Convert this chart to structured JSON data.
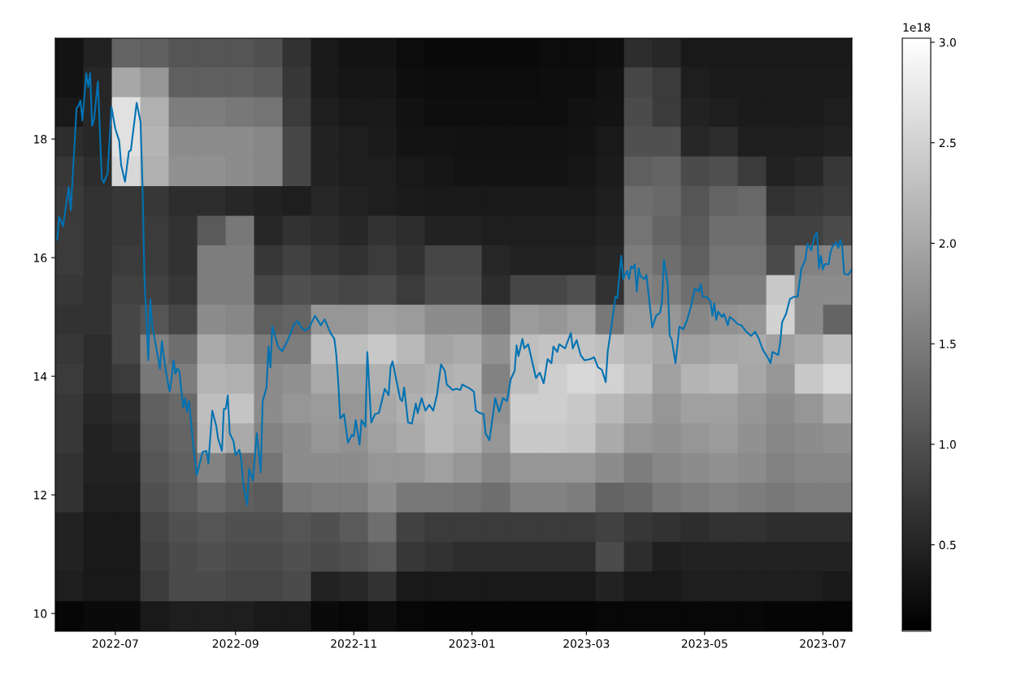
{
  "chart_data": {
    "type": "heatmap",
    "cells": [
      [
        0.3,
        0.47,
        1.23,
        1.17,
        1.05,
        1.05,
        1.05,
        1.0,
        0.65,
        0.36,
        0.3,
        0.3,
        0.21,
        0.19,
        0.19,
        0.19,
        0.19,
        0.21,
        0.21,
        0.24,
        0.59,
        0.53,
        0.36,
        0.36,
        0.36,
        0.36,
        0.36,
        0.36
      ],
      [
        0.3,
        0.53,
        2.0,
        1.8,
        1.17,
        1.17,
        1.17,
        1.11,
        0.71,
        0.36,
        0.33,
        0.33,
        0.24,
        0.21,
        0.21,
        0.21,
        0.21,
        0.24,
        0.24,
        0.28,
        0.88,
        0.76,
        0.42,
        0.39,
        0.39,
        0.39,
        0.39,
        0.39
      ],
      [
        0.36,
        0.53,
        2.67,
        2.1,
        1.52,
        1.52,
        1.46,
        1.41,
        0.76,
        0.42,
        0.36,
        0.36,
        0.28,
        0.24,
        0.24,
        0.24,
        0.24,
        0.24,
        0.28,
        0.3,
        0.94,
        0.76,
        0.47,
        0.42,
        0.39,
        0.39,
        0.39,
        0.42
      ],
      [
        0.59,
        0.53,
        2.67,
        2.15,
        1.69,
        1.69,
        1.69,
        1.63,
        0.88,
        0.47,
        0.42,
        0.39,
        0.3,
        0.3,
        0.28,
        0.28,
        0.28,
        0.28,
        0.3,
        0.36,
        1.0,
        1.0,
        0.53,
        0.59,
        0.42,
        0.42,
        0.42,
        0.47
      ],
      [
        0.71,
        0.59,
        2.56,
        2.1,
        1.75,
        1.75,
        1.69,
        1.63,
        0.88,
        0.47,
        0.42,
        0.42,
        0.36,
        0.33,
        0.3,
        0.3,
        0.3,
        0.3,
        0.33,
        0.39,
        1.17,
        1.23,
        0.94,
        1.0,
        0.76,
        0.47,
        0.53,
        0.71
      ],
      [
        0.76,
        0.65,
        0.71,
        0.71,
        0.59,
        0.59,
        0.53,
        0.47,
        0.42,
        0.53,
        0.47,
        0.42,
        0.39,
        0.36,
        0.36,
        0.36,
        0.36,
        0.36,
        0.36,
        0.42,
        1.34,
        1.28,
        1.05,
        1.23,
        1.28,
        0.65,
        0.71,
        0.76
      ],
      [
        0.76,
        0.65,
        0.71,
        0.76,
        0.65,
        1.11,
        1.46,
        0.53,
        0.65,
        0.59,
        0.53,
        0.65,
        0.59,
        0.47,
        0.47,
        0.42,
        0.42,
        0.42,
        0.42,
        0.47,
        1.41,
        1.23,
        1.11,
        1.34,
        1.34,
        0.82,
        0.82,
        0.94
      ],
      [
        0.76,
        0.65,
        0.76,
        0.76,
        0.65,
        1.52,
        1.52,
        0.71,
        0.82,
        0.71,
        0.65,
        0.76,
        0.65,
        0.88,
        0.88,
        0.53,
        0.47,
        0.47,
        0.47,
        0.53,
        1.52,
        1.34,
        1.17,
        1.41,
        1.41,
        0.94,
        1.57,
        1.63
      ],
      [
        0.71,
        0.65,
        0.82,
        0.82,
        0.71,
        1.52,
        1.52,
        0.88,
        1.0,
        0.94,
        0.88,
        0.94,
        0.76,
        0.94,
        0.94,
        0.59,
        0.88,
        0.88,
        1.0,
        0.65,
        1.57,
        1.52,
        1.34,
        1.52,
        1.52,
        2.38,
        1.69,
        1.69
      ],
      [
        0.65,
        0.65,
        0.88,
        1.06,
        0.88,
        1.69,
        1.63,
        1.17,
        1.23,
        1.8,
        1.8,
        1.92,
        1.86,
        1.69,
        1.69,
        1.46,
        1.86,
        1.8,
        1.92,
        1.46,
        1.86,
        1.8,
        1.63,
        1.75,
        1.8,
        2.5,
        1.69,
        1.23
      ],
      [
        0.71,
        0.59,
        0.88,
        1.57,
        1.34,
        2.03,
        1.92,
        1.52,
        1.52,
        2.27,
        2.27,
        2.38,
        2.21,
        1.97,
        2.03,
        1.75,
        2.27,
        2.33,
        2.33,
        2.27,
        2.15,
        2.0,
        1.92,
        2.0,
        2.03,
        1.92,
        2.03,
        2.27
      ],
      [
        0.76,
        0.59,
        0.76,
        1.46,
        1.52,
        2.15,
        2.1,
        1.69,
        1.75,
        2.03,
        1.97,
        2.1,
        2.03,
        2.1,
        2.15,
        1.57,
        2.27,
        2.45,
        2.56,
        2.5,
        2.27,
        1.92,
        2.15,
        2.21,
        2.0,
        1.8,
        2.38,
        2.56
      ],
      [
        0.71,
        0.53,
        0.59,
        1.17,
        1.28,
        2.27,
        2.33,
        1.69,
        1.8,
        1.86,
        1.8,
        2.0,
        2.1,
        2.21,
        2.15,
        1.75,
        2.45,
        2.45,
        2.38,
        2.21,
        2.0,
        1.8,
        1.92,
        1.92,
        1.8,
        1.69,
        1.8,
        2.03
      ],
      [
        0.71,
        0.47,
        0.53,
        1.11,
        1.23,
        2.21,
        2.03,
        1.57,
        1.69,
        1.8,
        1.75,
        1.92,
        2.03,
        2.21,
        2.1,
        1.8,
        2.38,
        2.38,
        2.33,
        2.03,
        1.8,
        1.75,
        1.8,
        1.86,
        1.75,
        1.63,
        1.69,
        1.75
      ],
      [
        0.65,
        0.47,
        0.47,
        1.05,
        1.17,
        1.57,
        1.34,
        1.41,
        1.69,
        1.69,
        1.69,
        1.8,
        1.8,
        1.92,
        1.8,
        1.63,
        1.8,
        1.8,
        1.8,
        1.69,
        1.52,
        1.63,
        1.69,
        1.75,
        1.69,
        1.57,
        1.63,
        1.63
      ],
      [
        0.65,
        0.42,
        0.42,
        1.0,
        1.11,
        1.28,
        1.17,
        1.11,
        1.46,
        1.52,
        1.52,
        1.69,
        1.46,
        1.46,
        1.41,
        1.34,
        1.57,
        1.57,
        1.52,
        1.23,
        1.28,
        1.46,
        1.52,
        1.57,
        1.52,
        1.46,
        1.52,
        1.52
      ],
      [
        0.47,
        0.36,
        0.36,
        0.88,
        1.0,
        1.05,
        1.0,
        1.0,
        1.05,
        1.0,
        1.11,
        1.34,
        0.82,
        0.76,
        0.76,
        0.76,
        0.76,
        0.76,
        0.76,
        0.82,
        0.71,
        0.65,
        0.59,
        0.65,
        0.65,
        0.59,
        0.59,
        0.59
      ],
      [
        0.47,
        0.36,
        0.36,
        0.82,
        0.94,
        1.0,
        0.94,
        0.94,
        1.0,
        0.94,
        1.0,
        1.11,
        0.71,
        0.65,
        0.59,
        0.59,
        0.59,
        0.59,
        0.59,
        0.94,
        0.59,
        0.42,
        0.47,
        0.47,
        0.47,
        0.47,
        0.47,
        0.47
      ],
      [
        0.42,
        0.36,
        0.36,
        0.76,
        0.94,
        0.94,
        0.88,
        0.88,
        0.94,
        0.47,
        0.53,
        0.65,
        0.36,
        0.36,
        0.36,
        0.36,
        0.36,
        0.36,
        0.36,
        0.47,
        0.36,
        0.36,
        0.42,
        0.42,
        0.42,
        0.42,
        0.42,
        0.36
      ],
      [
        0.15,
        0.19,
        0.19,
        0.36,
        0.42,
        0.42,
        0.42,
        0.36,
        0.36,
        0.19,
        0.16,
        0.24,
        0.16,
        0.13,
        0.13,
        0.13,
        0.13,
        0.13,
        0.13,
        0.16,
        0.16,
        0.16,
        0.16,
        0.16,
        0.16,
        0.13,
        0.13,
        0.13
      ]
    ],
    "clim": [
      0.07,
      3.02
    ],
    "cticks": [
      0.5,
      {
        "value": 1,
        "label": "1.0"
      },
      1.5,
      {
        "value": 2,
        "label": "2.0"
      },
      2.5,
      {
        "value": 3,
        "label": "3.0"
      }
    ],
    "clabel": "1e18",
    "xlim": [
      "2022-05-31",
      "2023-07-16"
    ],
    "xticks": [
      "2022-07",
      "2022-09",
      "2022-11",
      "2023-01",
      "2023-03",
      "2023-05",
      "2023-07"
    ],
    "ylim": [
      9.7,
      19.7
    ],
    "yticks": [
      10,
      12,
      14,
      16,
      18
    ],
    "series": [
      {
        "type": "line",
        "color": "#0072b2",
        "x": [
          "2022-06-01",
          "2022-06-02",
          "2022-06-04",
          "2022-06-07",
          "2022-06-08",
          "2022-06-11",
          "2022-06-12",
          "2022-06-13",
          "2022-06-14",
          "2022-06-16",
          "2022-06-17",
          "2022-06-18",
          "2022-06-19",
          "2022-06-20",
          "2022-06-22",
          "2022-06-24",
          "2022-06-25",
          "2022-06-27",
          "2022-06-29",
          "2022-07-01",
          "2022-07-03",
          "2022-07-04",
          "2022-07-06",
          "2022-07-08",
          "2022-07-09",
          "2022-07-12",
          "2022-07-14",
          "2022-07-15",
          "2022-07-16",
          "2022-07-18",
          "2022-07-19",
          "2022-07-20",
          "2022-07-22",
          "2022-07-24",
          "2022-07-25",
          "2022-07-27",
          "2022-07-29",
          "2022-07-30",
          "2022-07-31",
          "2022-08-01",
          "2022-08-02",
          "2022-08-03",
          "2022-08-05",
          "2022-08-06",
          "2022-08-07",
          "2022-08-08",
          "2022-08-10",
          "2022-08-12",
          "2022-08-15",
          "2022-08-17",
          "2022-08-18",
          "2022-08-20",
          "2022-08-22",
          "2022-08-23",
          "2022-08-25",
          "2022-08-26",
          "2022-08-27",
          "2022-08-28",
          "2022-08-29",
          "2022-08-31",
          "2022-09-01",
          "2022-09-03",
          "2022-09-04",
          "2022-09-05",
          "2022-09-07",
          "2022-09-08",
          "2022-09-10",
          "2022-09-12",
          "2022-09-14",
          "2022-09-15",
          "2022-09-17",
          "2022-09-18",
          "2022-09-19",
          "2022-09-20",
          "2022-09-23",
          "2022-09-25",
          "2022-09-28",
          "2022-10-01",
          "2022-10-03",
          "2022-10-05",
          "2022-10-07",
          "2022-10-09",
          "2022-10-12",
          "2022-10-15",
          "2022-10-17",
          "2022-10-20",
          "2022-10-22",
          "2022-10-23",
          "2022-10-24",
          "2022-10-25",
          "2022-10-27",
          "2022-10-29",
          "2022-10-31",
          "2022-11-01",
          "2022-11-02",
          "2022-11-04",
          "2022-11-05",
          "2022-11-07",
          "2022-11-08",
          "2022-11-10",
          "2022-11-12",
          "2022-11-14",
          "2022-11-17",
          "2022-11-19",
          "2022-11-20",
          "2022-11-21",
          "2022-11-25",
          "2022-11-26",
          "2022-11-27",
          "2022-11-29",
          "2022-12-01",
          "2022-12-03",
          "2022-12-04",
          "2022-12-06",
          "2022-12-08",
          "2022-12-10",
          "2022-12-12",
          "2022-12-14",
          "2022-12-16",
          "2022-12-18",
          "2022-12-19",
          "2022-12-22",
          "2022-12-24",
          "2022-12-26",
          "2022-12-27",
          "2022-12-31",
          "2023-01-02",
          "2023-01-03",
          "2023-01-05",
          "2023-01-07",
          "2023-01-08",
          "2023-01-10",
          "2023-01-13",
          "2023-01-15",
          "2023-01-17",
          "2023-01-19",
          "2023-01-21",
          "2023-01-23",
          "2023-01-24",
          "2023-01-25",
          "2023-01-27",
          "2023-01-28",
          "2023-01-30",
          "2023-02-03",
          "2023-02-05",
          "2023-02-07",
          "2023-02-09",
          "2023-02-11",
          "2023-02-12",
          "2023-02-14",
          "2023-02-15",
          "2023-02-18",
          "2023-02-21",
          "2023-02-22",
          "2023-02-24",
          "2023-02-26",
          "2023-02-28",
          "2023-03-03",
          "2023-03-05",
          "2023-03-07",
          "2023-03-09",
          "2023-03-11",
          "2023-03-12",
          "2023-03-14",
          "2023-03-16",
          "2023-03-17",
          "2023-03-18",
          "2023-03-19",
          "2023-03-20",
          "2023-03-22",
          "2023-03-23",
          "2023-03-24",
          "2023-03-25",
          "2023-03-26",
          "2023-03-27",
          "2023-03-28",
          "2023-03-29",
          "2023-03-31",
          "2023-04-01",
          "2023-04-04",
          "2023-04-06",
          "2023-04-08",
          "2023-04-09",
          "2023-04-10",
          "2023-04-12",
          "2023-04-13",
          "2023-04-14",
          "2023-04-16",
          "2023-04-18",
          "2023-04-20",
          "2023-04-22",
          "2023-04-24",
          "2023-04-26",
          "2023-04-28",
          "2023-04-29",
          "2023-04-30",
          "2023-05-02",
          "2023-05-04",
          "2023-05-05",
          "2023-05-06",
          "2023-05-07",
          "2023-05-08",
          "2023-05-10",
          "2023-05-11",
          "2023-05-13",
          "2023-05-14",
          "2023-05-16",
          "2023-05-18",
          "2023-05-20",
          "2023-05-22",
          "2023-05-25",
          "2023-05-27",
          "2023-05-29",
          "2023-05-31",
          "2023-06-03",
          "2023-06-04",
          "2023-06-05",
          "2023-06-08",
          "2023-06-09",
          "2023-06-10",
          "2023-06-12",
          "2023-06-14",
          "2023-06-16",
          "2023-06-18",
          "2023-06-19",
          "2023-06-20",
          "2023-06-22",
          "2023-06-23",
          "2023-06-24",
          "2023-06-25",
          "2023-06-26",
          "2023-06-27",
          "2023-06-28",
          "2023-06-29",
          "2023-06-30",
          "2023-07-01",
          "2023-07-02",
          "2023-07-04",
          "2023-07-05",
          "2023-07-06",
          "2023-07-08",
          "2023-07-09",
          "2023-07-10",
          "2023-07-11",
          "2023-07-12",
          "2023-07-14",
          "2023-07-16"
        ],
        "values": [
          16.3,
          16.69,
          16.53,
          17.19,
          16.8,
          18.52,
          18.56,
          18.65,
          18.31,
          19.11,
          18.88,
          19.11,
          18.22,
          18.33,
          18.97,
          17.33,
          17.26,
          17.42,
          18.54,
          18.17,
          17.97,
          17.56,
          17.28,
          17.79,
          17.81,
          18.61,
          18.29,
          17.24,
          15.68,
          14.27,
          15.3,
          14.86,
          14.5,
          14.13,
          14.59,
          14.09,
          13.74,
          13.97,
          14.27,
          14.04,
          14.13,
          14.09,
          13.47,
          13.63,
          13.4,
          13.58,
          12.9,
          12.33,
          12.72,
          12.74,
          12.53,
          13.42,
          13.17,
          12.95,
          12.74,
          13.45,
          13.45,
          13.68,
          13.04,
          12.9,
          12.67,
          12.76,
          12.58,
          12.17,
          11.83,
          12.44,
          12.24,
          13.04,
          12.38,
          13.58,
          13.81,
          14.5,
          14.15,
          14.84,
          14.5,
          14.42,
          14.61,
          14.86,
          14.93,
          14.82,
          14.77,
          14.82,
          15.02,
          14.86,
          14.96,
          14.73,
          14.63,
          14.36,
          13.9,
          13.29,
          13.36,
          12.88,
          13.01,
          12.99,
          13.26,
          12.85,
          13.26,
          13.15,
          14.41,
          13.22,
          13.36,
          13.38,
          13.79,
          13.68,
          14.15,
          14.25,
          13.61,
          13.58,
          13.81,
          13.22,
          13.2,
          13.54,
          13.38,
          13.63,
          13.42,
          13.52,
          13.42,
          13.7,
          14.2,
          14.09,
          13.86,
          13.77,
          13.79,
          13.77,
          13.86,
          13.79,
          13.74,
          13.42,
          13.38,
          13.36,
          13.04,
          12.92,
          13.63,
          13.4,
          13.63,
          13.58,
          13.95,
          14.09,
          14.52,
          14.34,
          14.63,
          14.47,
          14.54,
          13.97,
          14.06,
          13.88,
          14.29,
          14.22,
          14.5,
          14.41,
          14.54,
          14.47,
          14.73,
          14.47,
          14.61,
          14.36,
          14.27,
          14.29,
          14.32,
          14.15,
          14.11,
          13.9,
          14.41,
          14.86,
          15.34,
          15.32,
          15.68,
          16.03,
          15.64,
          15.78,
          15.64,
          15.85,
          15.82,
          15.89,
          15.43,
          15.82,
          15.68,
          15.64,
          15.71,
          14.82,
          15.02,
          15.07,
          15.25,
          15.96,
          15.55,
          14.68,
          14.63,
          14.22,
          14.84,
          14.79,
          14.95,
          15.18,
          15.48,
          15.43,
          15.55,
          15.34,
          15.34,
          15.27,
          15.02,
          15.23,
          14.95,
          15.09,
          15.0,
          15.05,
          14.86,
          15.0,
          14.95,
          14.88,
          14.86,
          14.77,
          14.68,
          14.75,
          14.63,
          14.45,
          14.29,
          14.22,
          14.41,
          14.36,
          14.57,
          14.91,
          15.05,
          15.3,
          15.34,
          15.34,
          15.59,
          15.82,
          15.96,
          16.23,
          16.19,
          16.12,
          16.26,
          16.39,
          16.42,
          15.82,
          16.03,
          15.8,
          15.89,
          15.89,
          16.1,
          16.19,
          16.26,
          16.16,
          16.3,
          16.19,
          15.73,
          15.71,
          15.8
        ]
      }
    ]
  }
}
